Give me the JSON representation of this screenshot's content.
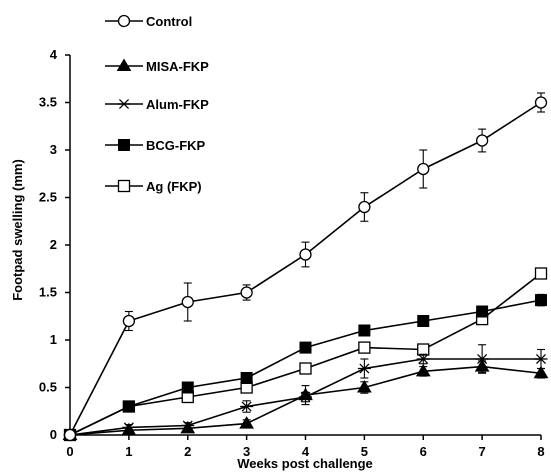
{
  "chart_data": {
    "type": "line",
    "title": "",
    "xlabel": "Weeks post challenge",
    "ylabel": "Footpad swelling (mm)",
    "xlim": [
      0,
      8
    ],
    "ylim": [
      0,
      4
    ],
    "x_ticks": [
      "0",
      "1",
      "2",
      "3",
      "4",
      "5",
      "6",
      "7",
      "8"
    ],
    "y_ticks": [
      "0",
      "0.5",
      "1",
      "1.5",
      "2",
      "2.5",
      "3",
      "3.5",
      "4"
    ],
    "x": [
      0,
      1,
      2,
      3,
      4,
      5,
      6,
      7,
      8
    ],
    "grid": false,
    "legend_position": "top-left",
    "series": [
      {
        "name": "Control",
        "marker": "open-circle",
        "values": [
          0,
          1.2,
          1.4,
          1.5,
          1.9,
          2.4,
          2.8,
          3.1,
          3.5
        ],
        "errors": [
          0,
          0.1,
          0.2,
          0.08,
          0.13,
          0.15,
          0.2,
          0.12,
          0.1
        ]
      },
      {
        "name": "MISA-FKP",
        "marker": "filled-triangle",
        "values": [
          0,
          0.05,
          0.07,
          0.12,
          0.42,
          0.5,
          0.67,
          0.72,
          0.65
        ],
        "errors": [
          0,
          0.03,
          0.03,
          0.04,
          0.1,
          0.06,
          0.05,
          0.06,
          0.05
        ]
      },
      {
        "name": "Alum-FKP",
        "marker": "star",
        "values": [
          0,
          0.08,
          0.1,
          0.3,
          0.4,
          0.7,
          0.8,
          0.8,
          0.8
        ],
        "errors": [
          0,
          0.03,
          0.03,
          0.06,
          0.05,
          0.1,
          0.05,
          0.15,
          0.1
        ]
      },
      {
        "name": "BCG-FKP",
        "marker": "filled-square",
        "values": [
          0,
          0.3,
          0.5,
          0.6,
          0.92,
          1.1,
          1.2,
          1.3,
          1.42
        ],
        "errors": [
          0,
          0.04,
          0.05,
          0.05,
          0.05,
          0.05,
          0.05,
          0.05,
          0.06
        ]
      },
      {
        "name": "Ag (FKP)",
        "marker": "open-square",
        "values": [
          0,
          0.3,
          0.4,
          0.5,
          0.7,
          0.92,
          0.9,
          1.22,
          1.7
        ],
        "errors": [
          0,
          0.03,
          0.03,
          0.03,
          0.03,
          0.03,
          0.03,
          0.03,
          0.03
        ]
      }
    ]
  }
}
